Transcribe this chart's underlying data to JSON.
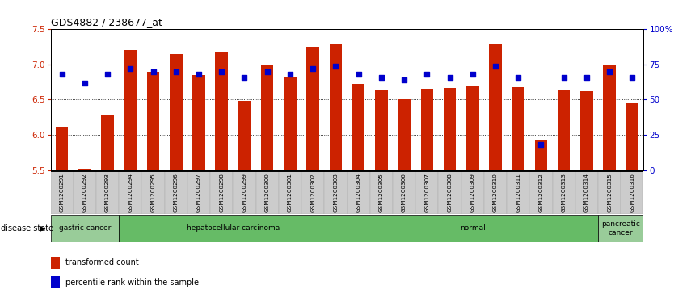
{
  "title": "GDS4882 / 238677_at",
  "samples": [
    "GSM1200291",
    "GSM1200292",
    "GSM1200293",
    "GSM1200294",
    "GSM1200295",
    "GSM1200296",
    "GSM1200297",
    "GSM1200298",
    "GSM1200299",
    "GSM1200300",
    "GSM1200301",
    "GSM1200302",
    "GSM1200303",
    "GSM1200304",
    "GSM1200305",
    "GSM1200306",
    "GSM1200307",
    "GSM1200308",
    "GSM1200309",
    "GSM1200310",
    "GSM1200311",
    "GSM1200312",
    "GSM1200313",
    "GSM1200314",
    "GSM1200315",
    "GSM1200316"
  ],
  "bar_values": [
    6.12,
    5.52,
    6.28,
    7.2,
    6.9,
    7.15,
    6.85,
    7.18,
    6.48,
    7.0,
    6.83,
    7.25,
    7.3,
    6.72,
    6.64,
    6.5,
    6.65,
    6.66,
    6.69,
    7.28,
    6.68,
    5.93,
    6.63,
    6.62,
    7.0,
    6.45
  ],
  "percentile_values": [
    68,
    62,
    68,
    72,
    70,
    70,
    68,
    70,
    66,
    70,
    68,
    72,
    74,
    68,
    66,
    64,
    68,
    66,
    68,
    74,
    66,
    18,
    66,
    66,
    70,
    66
  ],
  "bar_color": "#cc2200",
  "dot_color": "#0000cc",
  "ylim_left": [
    5.5,
    7.5
  ],
  "ylim_right": [
    0,
    100
  ],
  "yticks_left": [
    5.5,
    6.0,
    6.5,
    7.0,
    7.5
  ],
  "yticks_right": [
    0,
    25,
    50,
    75,
    100
  ],
  "ytick_labels_right": [
    "0",
    "25",
    "50",
    "75",
    "100%"
  ],
  "grid_lines": [
    6.0,
    6.5,
    7.0
  ],
  "disease_groups": [
    {
      "label": "gastric cancer",
      "start": 0,
      "end": 3,
      "color": "#99cc99"
    },
    {
      "label": "hepatocellular carcinoma",
      "start": 3,
      "end": 13,
      "color": "#66bb66"
    },
    {
      "label": "normal",
      "start": 13,
      "end": 24,
      "color": "#66bb66"
    },
    {
      "label": "pancreatic\ncancer",
      "start": 24,
      "end": 26,
      "color": "#99cc99"
    }
  ],
  "legend_items": [
    {
      "color": "#cc2200",
      "label": "transformed count"
    },
    {
      "color": "#0000cc",
      "label": "percentile rank within the sample"
    }
  ],
  "background_color": "#ffffff",
  "tick_bg_color": "#cccccc"
}
